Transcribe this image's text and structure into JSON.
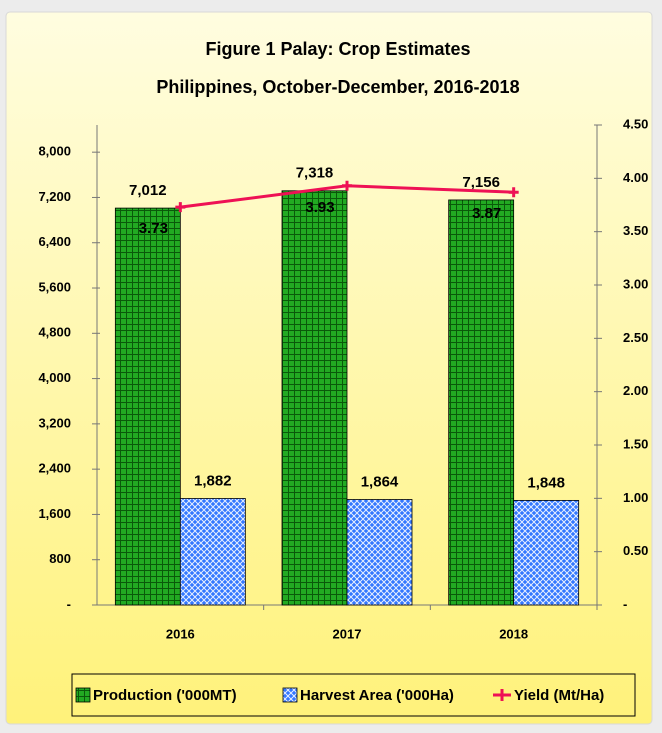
{
  "chart_data": {
    "type": "bar",
    "title": "Figure 1  Palay:  Crop Estimates",
    "subtitle": "Philippines, October-December, 2016-2018",
    "categories": [
      "2016",
      "2017",
      "2018"
    ],
    "series": [
      {
        "name": "Production ('000MT)",
        "type": "bar",
        "color": "#22aa22",
        "values": [
          7012,
          7318,
          7156
        ],
        "value_labels": [
          "7,012",
          "7,318",
          "7,156"
        ]
      },
      {
        "name": "Harvest Area ('000Ha)",
        "type": "bar",
        "color": "#3377ff",
        "values": [
          1882,
          1864,
          1848
        ],
        "value_labels": [
          "1,882",
          "1,864",
          "1,848"
        ]
      },
      {
        "name": "Yield (Mt/Ha)",
        "type": "line",
        "axis": "y2",
        "color": "#ee1155",
        "values": [
          3.73,
          3.93,
          3.87
        ]
      }
    ],
    "ylim": [
      0,
      8480
    ],
    "yticks": [
      {
        "value": 0,
        "label": "-"
      },
      800,
      {
        "value": 1600,
        "label": "1,600"
      },
      {
        "value": 2400,
        "label": "2,400"
      },
      {
        "value": 3200,
        "label": "3,200"
      },
      {
        "value": 4000,
        "label": "4,000"
      },
      {
        "value": 4800,
        "label": "4,800"
      },
      {
        "value": 5600,
        "label": "5,600"
      },
      {
        "value": 6400,
        "label": "6,400"
      },
      {
        "value": 7200,
        "label": "7,200"
      },
      {
        "value": 8000,
        "label": "8,000"
      }
    ],
    "y2lim": [
      0,
      4.5
    ],
    "y2ticks": [
      {
        "value": 0,
        "label": "-"
      },
      {
        "value": 0.5,
        "label": "0.50"
      },
      {
        "value": 1,
        "label": "1.00"
      },
      {
        "value": 1.5,
        "label": "1.50"
      },
      {
        "value": 2,
        "label": "2.00"
      },
      {
        "value": 2.5,
        "label": "2.50"
      },
      {
        "value": 3,
        "label": "3.00"
      },
      {
        "value": 3.5,
        "label": "3.50"
      },
      {
        "value": 4,
        "label": "4.00"
      },
      {
        "value": 4.5,
        "label": "4.50"
      }
    ],
    "grid": false,
    "legend": "bottom"
  }
}
